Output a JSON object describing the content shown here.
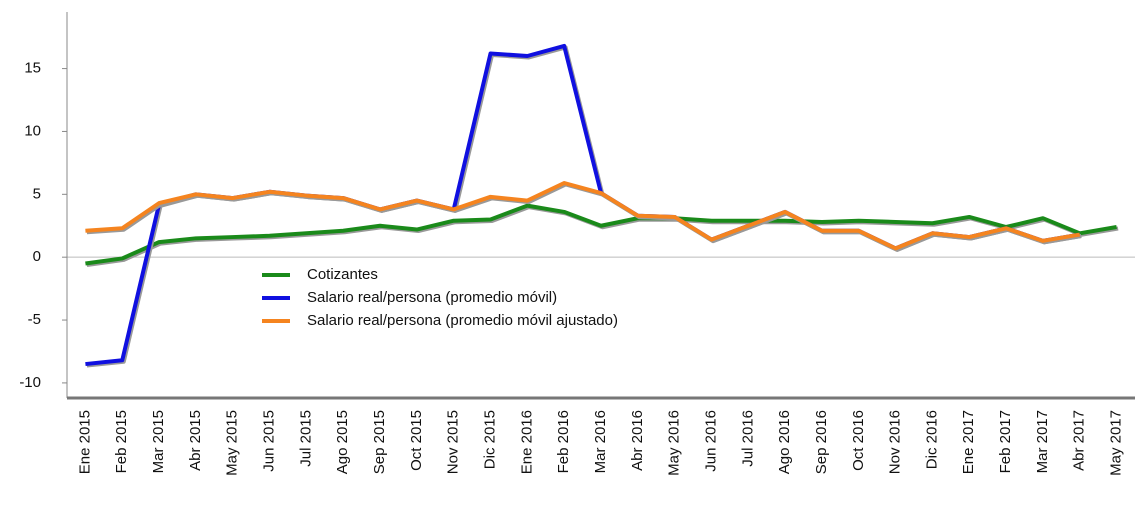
{
  "chart_data": {
    "type": "line",
    "categories": [
      "Ene 2015",
      "Feb 2015",
      "Mar 2015",
      "Abr 2015",
      "May 2015",
      "Jun 2015",
      "Jul 2015",
      "Ago 2015",
      "Sep 2015",
      "Oct 2015",
      "Nov 2015",
      "Dic 2015",
      "Ene 2016",
      "Feb 2016",
      "Mar 2016",
      "Abr 2016",
      "May 2016",
      "Jun 2016",
      "Jul 2016",
      "Ago 2016",
      "Sep 2016",
      "Oct 2016",
      "Nov 2016",
      "Dic 2016",
      "Ene 2017",
      "Feb 2017",
      "Mar 2017",
      "Abr 2017",
      "May 2017"
    ],
    "series": [
      {
        "name": "Cotizantes",
        "color": "#1a8a1a",
        "values": [
          -0.5,
          -0.1,
          1.2,
          1.5,
          1.6,
          1.7,
          1.9,
          2.1,
          2.5,
          2.2,
          2.9,
          3.0,
          4.1,
          3.6,
          2.5,
          3.1,
          3.1,
          2.9,
          2.9,
          2.9,
          2.8,
          2.9,
          2.8,
          2.7,
          3.2,
          2.4,
          3.1,
          1.9,
          2.4
        ]
      },
      {
        "name": "Salario real/persona (promedio móvil)",
        "color": "#1010e0",
        "values": [
          -8.5,
          -8.2,
          4.2,
          5.0,
          4.7,
          5.2,
          4.9,
          4.7,
          3.8,
          4.5,
          3.8,
          16.2,
          16.0,
          16.8,
          5.1,
          3.3,
          3.2,
          1.4,
          2.5,
          3.6,
          2.1,
          2.1,
          0.7,
          1.9,
          1.6,
          2.3,
          1.3,
          1.8,
          null
        ]
      },
      {
        "name": "Salario real/persona (promedio móvil ajustado)",
        "color": "#f5841f",
        "values": [
          2.1,
          2.3,
          4.3,
          5.0,
          4.7,
          5.2,
          4.9,
          4.7,
          3.8,
          4.5,
          3.8,
          4.8,
          4.5,
          5.9,
          5.1,
          3.3,
          3.2,
          1.4,
          2.5,
          3.6,
          2.1,
          2.1,
          0.7,
          1.9,
          1.6,
          2.3,
          1.3,
          1.8,
          null
        ]
      }
    ],
    "ylim": [
      -11.2,
      19.5
    ],
    "yticks": [
      -10,
      -5,
      0,
      5,
      10,
      15
    ],
    "grid": false
  }
}
